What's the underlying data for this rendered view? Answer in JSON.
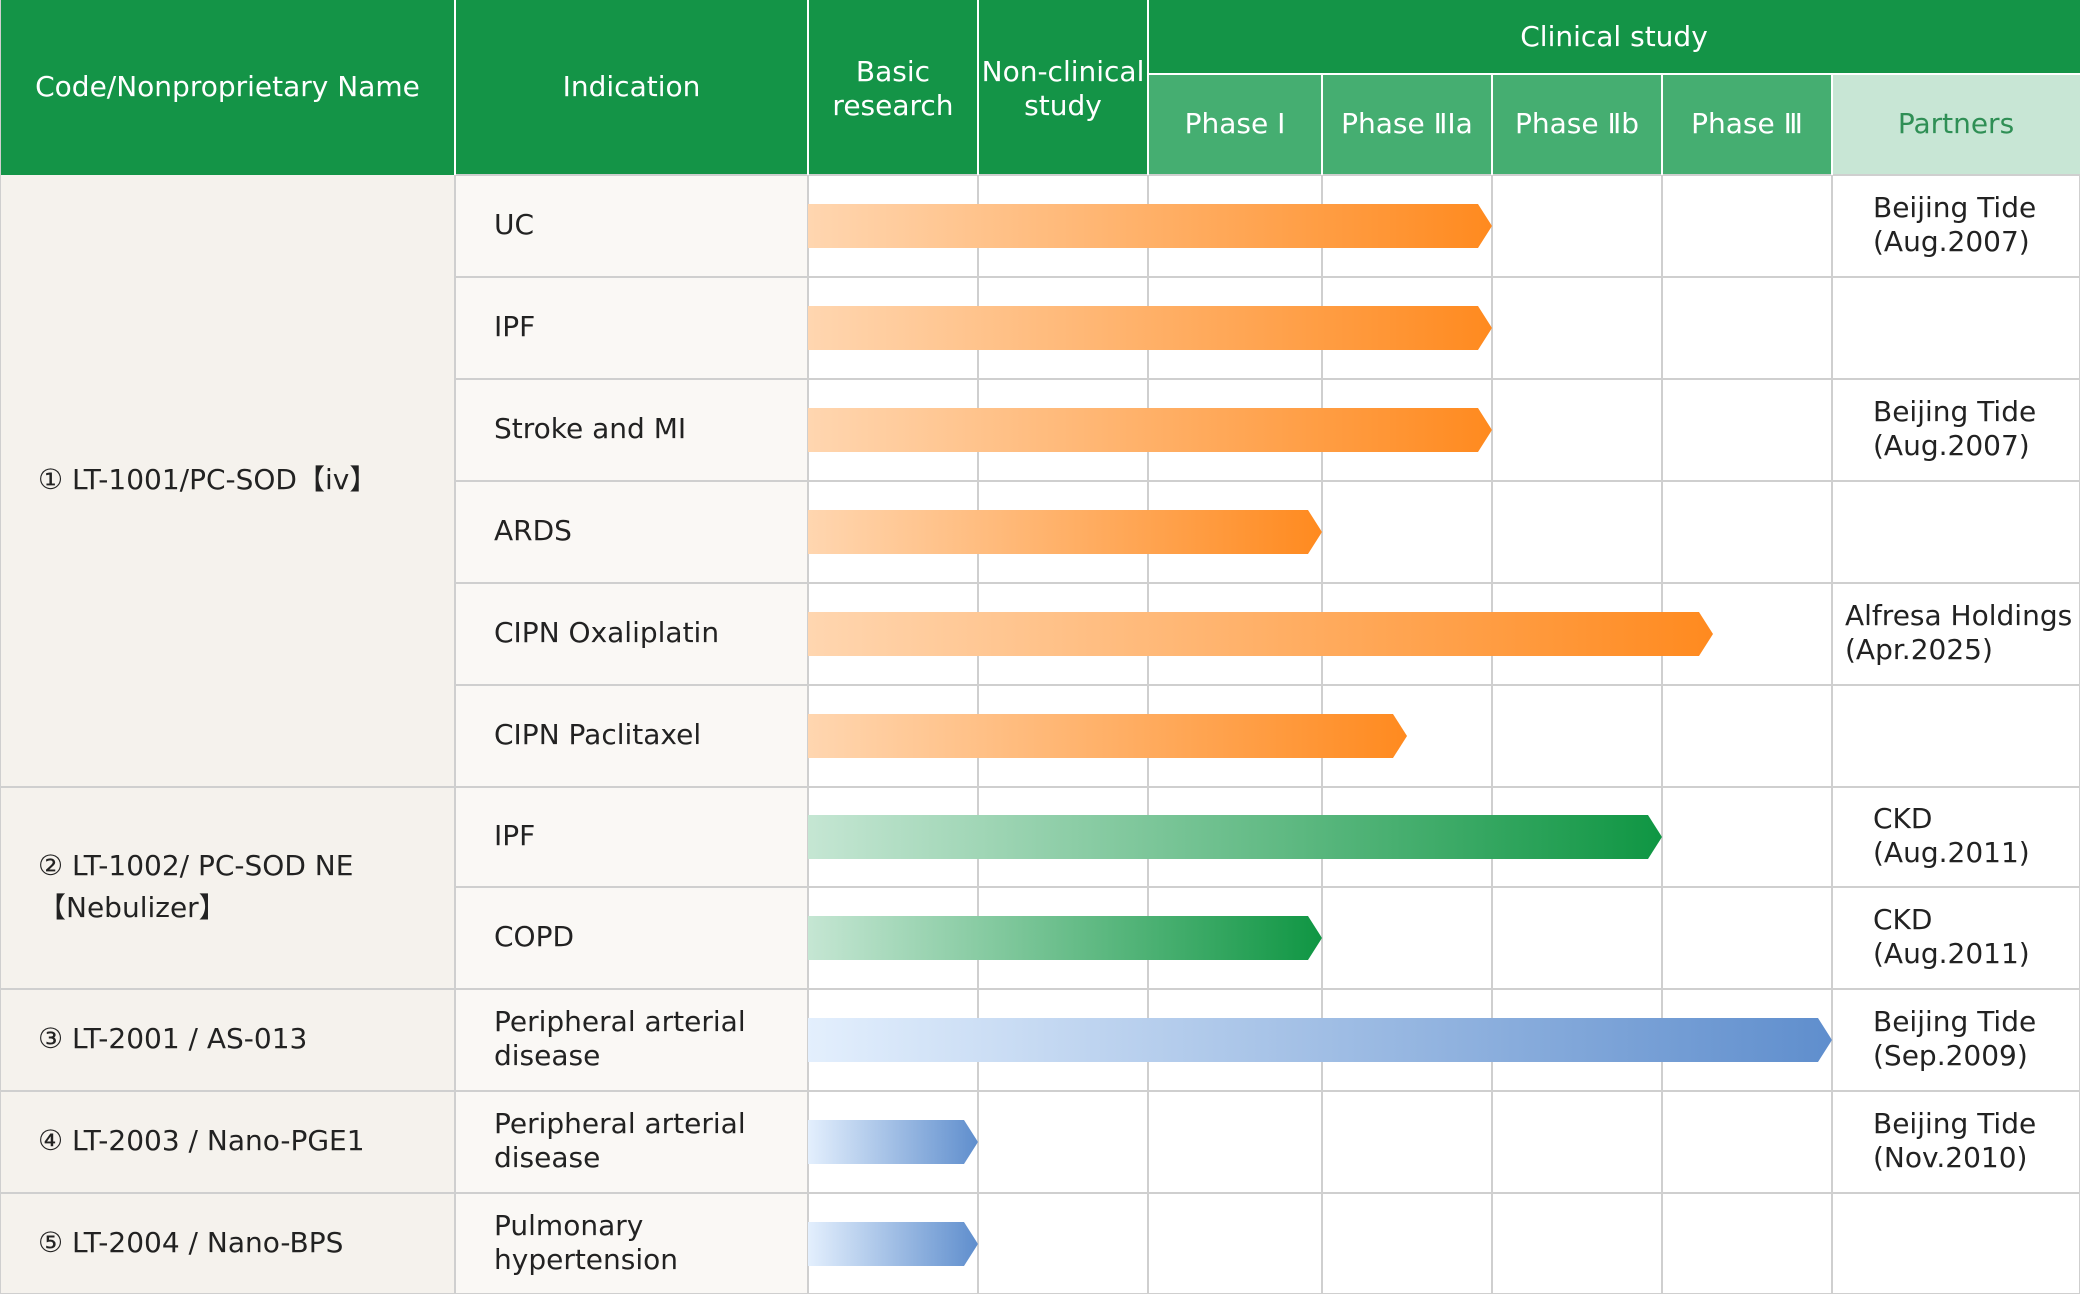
{
  "header": {
    "code_name": "Code/Nonproprietary Name",
    "indication": "Indication",
    "clinical_study": "Clinical study",
    "partners": "Partners"
  },
  "colors": {
    "header_green": "#149447",
    "subheader_green": "#45ae71",
    "partners_header_bg": "#c8e6d5",
    "partners_header_text": "#2f8f55",
    "orange_start": "#ffd6b0",
    "orange_end": "#ff8a1f",
    "green_start": "#c5e6d3",
    "green_end": "#0f9643",
    "blue_start": "#e3effd",
    "blue_end": "#5f8ecd",
    "left_panel_bg": "#f5f2ed",
    "indication_bg": "#faf8f5",
    "grid_line": "#cfcfcf"
  },
  "chart_data": {
    "type": "table",
    "stages": [
      [
        "Basic",
        "research"
      ],
      [
        "Non-clinical",
        "study"
      ],
      [
        "Phase Ⅰ"
      ],
      [
        "Phase ⅡⅠa"
      ],
      [
        "Phase Ⅱb"
      ],
      [
        "Phase Ⅲ"
      ]
    ],
    "compounds": [
      {
        "label": [
          "① LT-1001/PC-SOD【iv】"
        ],
        "rows": 6
      },
      {
        "label": [
          "② LT-1002/ PC-SOD NE",
          "【Nebulizer】"
        ],
        "rows": 2
      },
      {
        "label": [
          "③ LT-2001 / AS-013"
        ],
        "rows": 1
      },
      {
        "label": [
          "④ LT-2003 / Nano-PGE1"
        ],
        "rows": 1
      },
      {
        "label": [
          "⑤ LT-2004 /  Nano-BPS"
        ],
        "rows": 1
      }
    ],
    "rows": [
      {
        "indication": [
          "UC"
        ],
        "progress": 4.0,
        "color": "orange",
        "partner": [
          "Beijing Tide",
          "(Aug.2007)"
        ]
      },
      {
        "indication": [
          "IPF"
        ],
        "progress": 4.0,
        "color": "orange",
        "partner": []
      },
      {
        "indication": [
          "Stroke and MI"
        ],
        "progress": 4.0,
        "color": "orange",
        "partner": [
          "Beijing Tide",
          "(Aug.2007)"
        ]
      },
      {
        "indication": [
          "ARDS"
        ],
        "progress": 3.0,
        "color": "orange",
        "partner": []
      },
      {
        "indication": [
          "CIPN Oxaliplatin"
        ],
        "progress": 5.3,
        "color": "orange",
        "partner": [
          "Alfresa Holdings",
          "(Apr.2025)"
        ]
      },
      {
        "indication": [
          "CIPN Paclitaxel"
        ],
        "progress": 3.5,
        "color": "orange",
        "partner": []
      },
      {
        "indication": [
          "IPF"
        ],
        "progress": 5.0,
        "color": "green",
        "partner": [
          "CKD",
          "(Aug.2011)"
        ]
      },
      {
        "indication": [
          "COPD"
        ],
        "progress": 3.0,
        "color": "green",
        "partner": [
          "CKD",
          "(Aug.2011)"
        ]
      },
      {
        "indication": [
          "Peripheral arterial",
          "disease"
        ],
        "progress": 6.0,
        "color": "blue",
        "partner": [
          "Beijing Tide",
          "(Sep.2009)"
        ]
      },
      {
        "indication": [
          "Peripheral arterial",
          "disease"
        ],
        "progress": 1.0,
        "color": "blue",
        "partner": [
          "Beijing Tide",
          "(Nov.2010)"
        ]
      },
      {
        "indication": [
          "Pulmonary",
          "hypertension"
        ],
        "progress": 1.0,
        "color": "blue",
        "partner": []
      }
    ]
  }
}
